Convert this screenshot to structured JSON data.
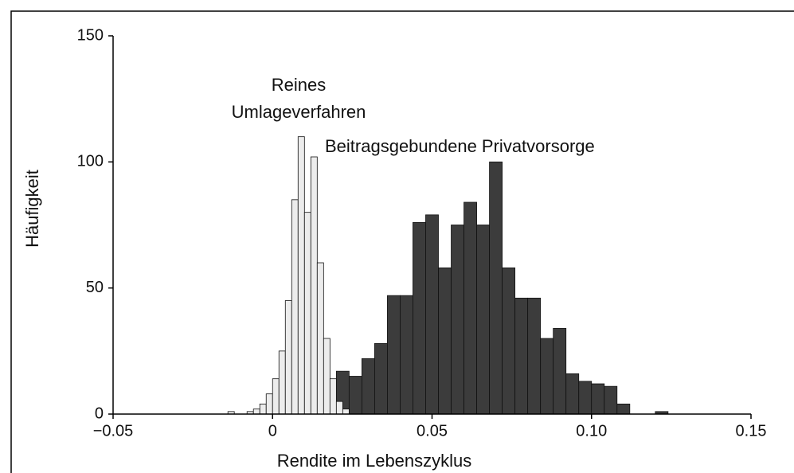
{
  "chart_data": {
    "type": "histogram",
    "xlabel": "Rendite im Lebenszyklus",
    "ylabel": "Häufigkeit",
    "xlim": [
      -0.05,
      0.15
    ],
    "ylim": [
      0,
      150
    ],
    "xticks": [
      {
        "value": -0.05,
        "label": "−0.05"
      },
      0,
      0.05,
      {
        "value": 0.1,
        "label": "0.10"
      },
      0.15
    ],
    "yticks": [
      0,
      50,
      100,
      150
    ],
    "series": [
      {
        "name": "Beitragsgebundene Privatvorsorge",
        "color": "#3c3c3c",
        "bins": [
          0.016,
          0.02,
          0.024,
          0.028,
          0.032,
          0.036,
          0.04,
          0.044,
          0.048,
          0.052,
          0.056,
          0.06,
          0.064,
          0.068,
          0.072,
          0.076,
          0.08,
          0.084,
          0.088,
          0.092,
          0.096,
          0.1,
          0.104,
          0.108,
          0.112,
          0.116,
          0.12,
          0.124
        ],
        "values": [
          13,
          17,
          15,
          22,
          28,
          47,
          47,
          76,
          79,
          58,
          75,
          84,
          75,
          100,
          58,
          46,
          46,
          30,
          34,
          16,
          13,
          12,
          11,
          4,
          0,
          0,
          1
        ]
      },
      {
        "name": "Reines Umlageverfahren",
        "color": "#ececec",
        "bins": [
          -0.014,
          -0.012,
          -0.01,
          -0.008,
          -0.006,
          -0.004,
          -0.002,
          0,
          0.002,
          0.004,
          0.006,
          0.008,
          0.01,
          0.012,
          0.014,
          0.016,
          0.018,
          0.02,
          0.022,
          0.024
        ],
        "values": [
          1,
          0,
          0,
          1,
          2,
          4,
          8,
          14,
          25,
          45,
          85,
          110,
          80,
          102,
          60,
          30,
          14,
          5,
          2
        ]
      }
    ]
  }
}
